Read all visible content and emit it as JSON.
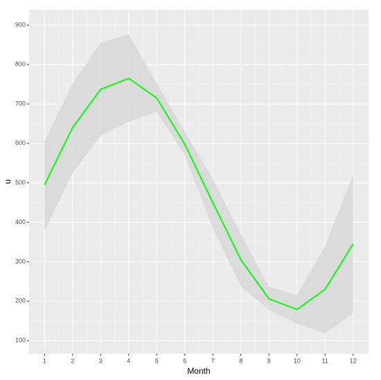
{
  "chart_data": {
    "type": "line",
    "x_label": "Month",
    "y_label": "u",
    "x": [
      1,
      2,
      3,
      4,
      5,
      6,
      7,
      8,
      9,
      10,
      11,
      12
    ],
    "values": [
      495,
      640,
      737,
      765,
      715,
      598,
      450,
      305,
      206,
      179,
      230,
      345
    ],
    "upper": [
      605,
      752,
      855,
      877,
      752,
      630,
      510,
      370,
      237,
      215,
      340,
      520
    ],
    "lower": [
      378,
      525,
      620,
      655,
      680,
      570,
      385,
      237,
      178,
      143,
      118,
      170
    ],
    "color": "#00ff00",
    "ribbon_color": "#d9d9d9",
    "xlim": [
      0.45,
      12.55
    ],
    "xticks": [
      1,
      2,
      3,
      4,
      5,
      6,
      7,
      8,
      9,
      10,
      11,
      12
    ],
    "ylim": [
      67,
      939
    ],
    "yticks": [
      100,
      200,
      300,
      400,
      500,
      600,
      700,
      800,
      900
    ],
    "grid": true
  }
}
